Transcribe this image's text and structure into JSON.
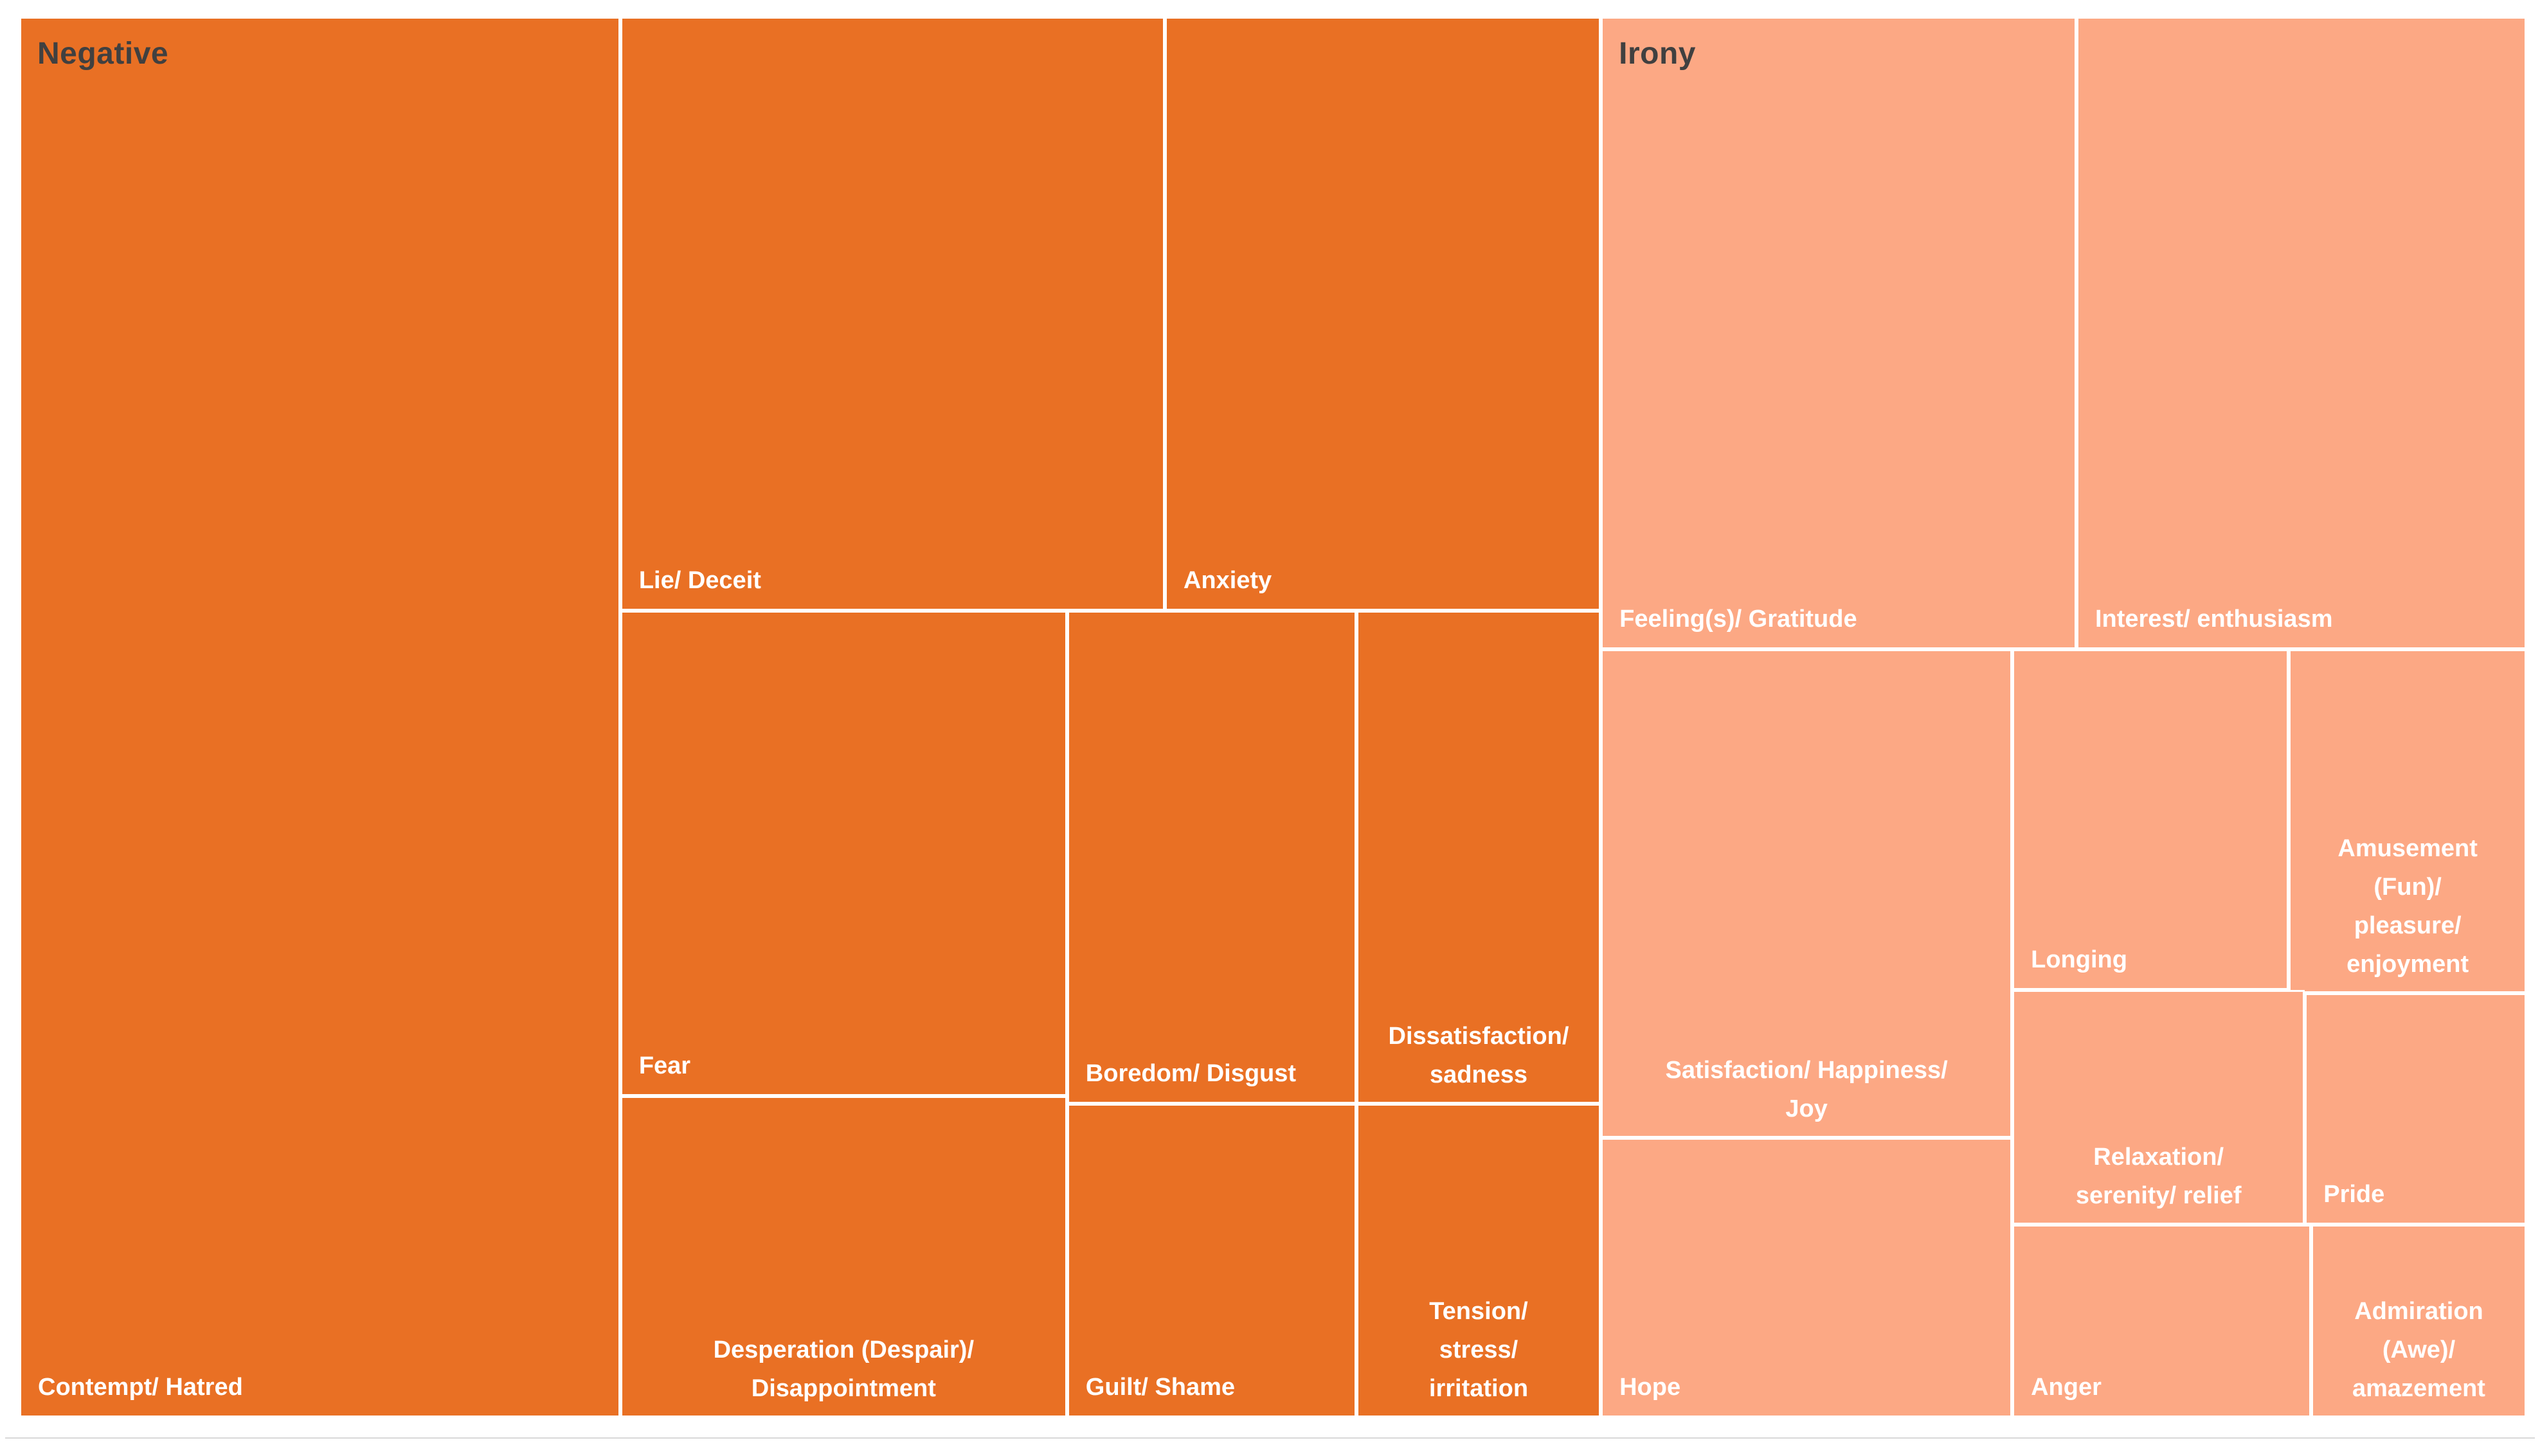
{
  "page": {
    "background": "#FFFFFF",
    "frame_rule_color": "#D9D9D9"
  },
  "chart_data": {
    "type": "treemap",
    "title": "",
    "legend": "none",
    "gridlines": "off",
    "palette": {
      "negative_fill": "#E97024",
      "irony_fill": "#FCA884",
      "cell_label_color": "#FFFFFF",
      "group_label_color": "#404040",
      "gap_color": "#FFFFFF"
    },
    "groups": [
      {
        "name": "Negative",
        "color": "#E97024",
        "approx_share_pct": 63.1,
        "items": [
          {
            "label": "Contempt/ Hatred",
            "lines": [
              "Contempt/ Hatred"
            ],
            "align": "left",
            "approx_area_pct": 24.0,
            "rect": {
              "x": 0,
              "y": 0,
              "w": 23.97,
              "h": 100
            }
          },
          {
            "label": "Lie/ Deceit",
            "lines": [
              "Lie/ Deceit"
            ],
            "align": "left",
            "approx_area_pct": 9.2,
            "rect": {
              "x": 23.97,
              "y": 0,
              "w": 21.72,
              "h": 42.4
            }
          },
          {
            "label": "Anxiety",
            "lines": [
              "Anxiety"
            ],
            "align": "left",
            "approx_area_pct": 7.4,
            "rect": {
              "x": 45.69,
              "y": 0,
              "w": 17.39,
              "h": 42.4
            }
          },
          {
            "label": "Fear",
            "lines": [
              "Fear"
            ],
            "align": "left",
            "approx_area_pct": 6.2,
            "rect": {
              "x": 23.97,
              "y": 42.4,
              "w": 17.82,
              "h": 34.65
            }
          },
          {
            "label": "Boredom/ Disgust",
            "lines": [
              "Boredom/ Disgust"
            ],
            "align": "left",
            "approx_area_pct": 4.1,
            "rect": {
              "x": 41.79,
              "y": 42.4,
              "w": 11.54,
              "h": 35.2
            }
          },
          {
            "label": "Dissatisfaction/ sadness",
            "lines": [
              "Dissatisfaction/",
              "sadness"
            ],
            "align": "center",
            "approx_area_pct": 3.4,
            "rect": {
              "x": 53.33,
              "y": 42.4,
              "w": 9.75,
              "h": 35.2
            }
          },
          {
            "label": "Desperation (Despair)/ Disappointment",
            "lines": [
              "Desperation (Despair)/",
              "Disappointment"
            ],
            "align": "center",
            "approx_area_pct": 4.1,
            "rect": {
              "x": 23.97,
              "y": 77.05,
              "w": 17.82,
              "h": 22.95
            }
          },
          {
            "label": "Guilt/ Shame",
            "lines": [
              "Guilt/ Shame"
            ],
            "align": "left",
            "approx_area_pct": 2.6,
            "rect": {
              "x": 41.79,
              "y": 77.6,
              "w": 11.54,
              "h": 22.4
            }
          },
          {
            "label": "Tension/ stress/ irritation",
            "lines": [
              "Tension/",
              "stress/",
              "irritation"
            ],
            "align": "center",
            "approx_area_pct": 2.2,
            "rect": {
              "x": 53.33,
              "y": 77.6,
              "w": 9.75,
              "h": 22.4
            }
          }
        ]
      },
      {
        "name": "Irony",
        "color": "#FCA884",
        "approx_share_pct": 36.9,
        "items": [
          {
            "label": "Feeling(s)/ Gratitude",
            "lines": [
              "Feeling(s)/ Gratitude"
            ],
            "align": "left",
            "approx_area_pct": 8.6,
            "rect": {
              "x": 63.08,
              "y": 0,
              "w": 18.97,
              "h": 45.16
            }
          },
          {
            "label": "Interest/ enthusiasm",
            "lines": [
              "Interest/ enthusiasm"
            ],
            "align": "left",
            "approx_area_pct": 8.1,
            "rect": {
              "x": 82.05,
              "y": 0,
              "w": 17.95,
              "h": 45.16
            }
          },
          {
            "label": "Satisfaction/ Happiness/ Joy",
            "lines": [
              "Satisfaction/ Happiness/",
              "Joy"
            ],
            "align": "center",
            "approx_area_pct": 5.7,
            "rect": {
              "x": 63.08,
              "y": 45.16,
              "w": 16.41,
              "h": 34.88
            }
          },
          {
            "label": "Hope",
            "lines": [
              "Hope"
            ],
            "align": "left",
            "approx_area_pct": 3.3,
            "rect": {
              "x": 63.08,
              "y": 80.04,
              "w": 16.41,
              "h": 19.96
            }
          },
          {
            "label": "Longing",
            "lines": [
              "Longing"
            ],
            "align": "left",
            "approx_area_pct": 2.7,
            "rect": {
              "x": 79.49,
              "y": 45.16,
              "w": 11.03,
              "h": 24.32
            }
          },
          {
            "label": "Amusement (Fun)/ pleasure/ enjoyment",
            "lines": [
              "Amusement",
              "(Fun)/",
              "pleasure/",
              "enjoyment"
            ],
            "align": "center",
            "approx_area_pct": 2.3,
            "rect": {
              "x": 90.52,
              "y": 45.16,
              "w": 9.48,
              "h": 24.55
            }
          },
          {
            "label": "Relaxation/ serenity/ relief",
            "lines": [
              "Relaxation/",
              "serenity/ relief"
            ],
            "align": "center",
            "approx_area_pct": 2.0,
            "rect": {
              "x": 79.49,
              "y": 69.48,
              "w": 11.67,
              "h": 16.75
            }
          },
          {
            "label": "Pride",
            "lines": [
              "Pride"
            ],
            "align": "left",
            "approx_area_pct": 1.5,
            "rect": {
              "x": 91.16,
              "y": 69.71,
              "w": 8.84,
              "h": 16.52
            }
          },
          {
            "label": "Anger",
            "lines": [
              "Anger"
            ],
            "align": "left",
            "approx_area_pct": 1.6,
            "rect": {
              "x": 79.49,
              "y": 86.23,
              "w": 11.92,
              "h": 13.77
            }
          },
          {
            "label": "Admiration (Awe)/ amazement",
            "lines": [
              "Admiration",
              "(Awe)/",
              "amazement"
            ],
            "align": "center",
            "approx_area_pct": 1.2,
            "rect": {
              "x": 91.41,
              "y": 86.23,
              "w": 8.59,
              "h": 13.77
            }
          }
        ]
      }
    ]
  }
}
